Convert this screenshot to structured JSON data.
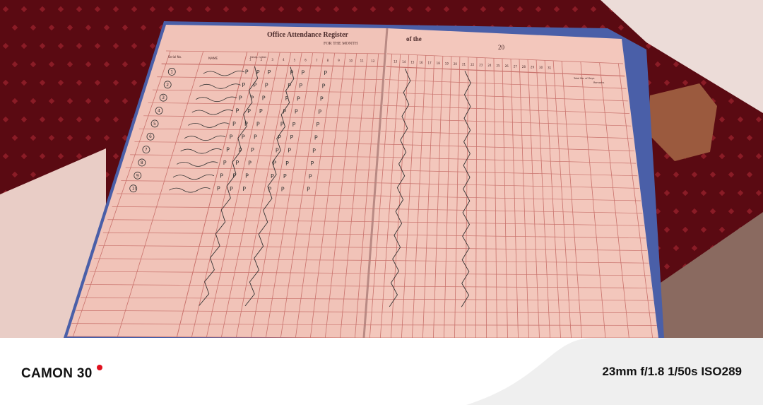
{
  "register": {
    "title": "Office Attendance Register",
    "subtitle": "FOR THE MONTH",
    "of_the_label": "of the",
    "year_label": "20",
    "headers": {
      "serial": "Serial No.",
      "name": "NAME",
      "designation": "Desig- nation",
      "total": "Total No. of Days",
      "remarks": "Remarks"
    },
    "left_days": [
      "1",
      "2",
      "3",
      "4",
      "5",
      "6",
      "7",
      "8",
      "9",
      "10",
      "11",
      "12"
    ],
    "right_days": [
      "13",
      "14",
      "15",
      "16",
      "17",
      "18",
      "19",
      "20",
      "21",
      "22",
      "23",
      "24",
      "25",
      "26",
      "27",
      "28",
      "29",
      "30",
      "31"
    ],
    "row_numbers": [
      "1",
      "2",
      "3",
      "4",
      "5",
      "6",
      "7",
      "8",
      "9",
      "10"
    ],
    "attendance_mark": "P"
  },
  "watermark": {
    "model": "CAMON 30",
    "exif": "23mm f/1.8 1/50s ISO289",
    "dot_color": "#e0101e"
  },
  "colors": {
    "background": "#5a0a12",
    "page": "#f1c3b8",
    "grid": "#c9726c",
    "cover": "#4a5fa8"
  }
}
